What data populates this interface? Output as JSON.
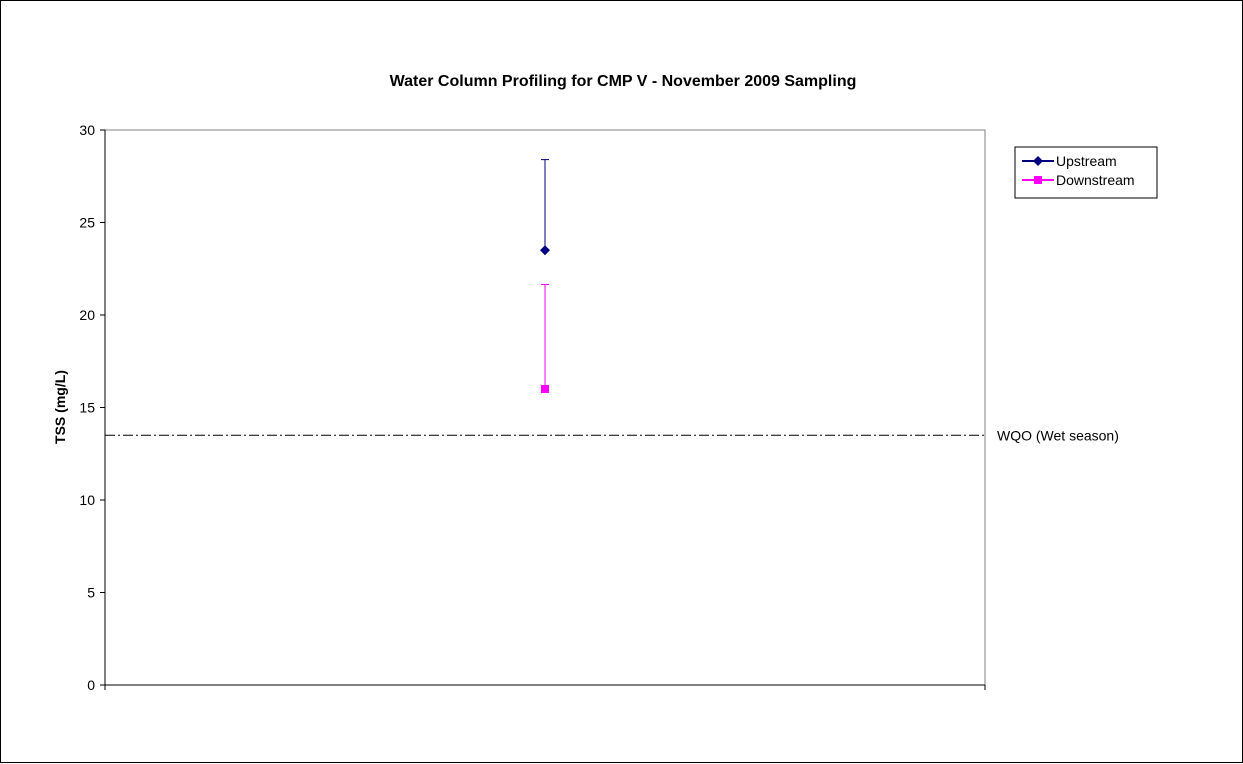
{
  "chart_data": {
    "type": "scatter",
    "title": "Water Column Profiling for CMP V - November 2009 Sampling",
    "xlabel": "",
    "ylabel": "TSS (mg/L)",
    "ylim": [
      0,
      30
    ],
    "yticks": [
      0,
      5,
      10,
      15,
      20,
      25,
      30
    ],
    "grid": false,
    "legend_position": "top-right",
    "series": [
      {
        "name": "Upstream",
        "color": "#000080",
        "marker": "diamond",
        "value": 23.5,
        "error_high": 28.4
      },
      {
        "name": "Downstream",
        "color": "#ff00ff",
        "marker": "square",
        "value": 16.0,
        "error_high": 21.65
      }
    ],
    "reference_line": {
      "label": "WQO (Wet season)",
      "value": 13.5,
      "style": "dash-dot",
      "color": "#000000"
    }
  }
}
